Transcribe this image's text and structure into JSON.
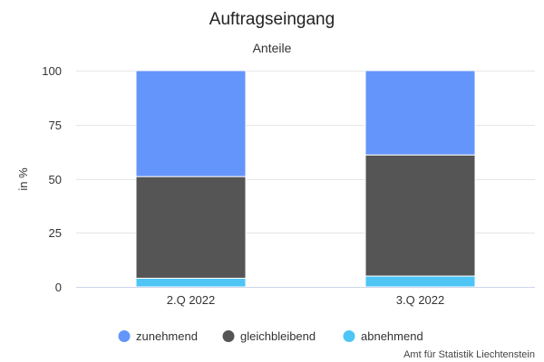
{
  "chart_data": {
    "type": "bar",
    "stacked": true,
    "title": "Auftragseingang",
    "subtitle": "Anteile",
    "ylabel": "in %",
    "xlabel": "",
    "ylim": [
      0,
      100
    ],
    "yticks": [
      0,
      25,
      50,
      75,
      100
    ],
    "categories": [
      "2.Q 2022",
      "3.Q 2022"
    ],
    "series": [
      {
        "name": "zunehmend",
        "color": "#6495fb",
        "values": [
          49,
          39
        ]
      },
      {
        "name": "gleichbleibend",
        "color": "#555555",
        "values": [
          47,
          56
        ]
      },
      {
        "name": "abnehmend",
        "color": "#4ec5f5",
        "values": [
          4,
          5
        ]
      }
    ],
    "stack_order_bottom_to_top": [
      "abnehmend",
      "gleichbleibend",
      "zunehmend"
    ],
    "legend_position": "bottom-center",
    "grid": true
  },
  "credit": "Amt für Statistik Liechtenstein"
}
